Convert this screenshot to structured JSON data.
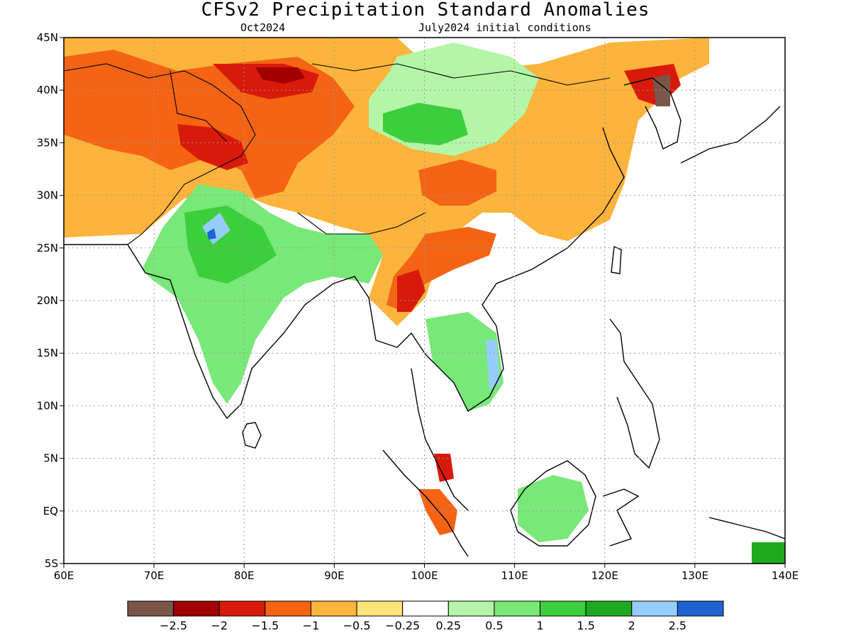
{
  "title": "CFSv2 Precipitation Standard Anomalies",
  "subtitle_left": "Oct2024",
  "subtitle_right": "July2024 initial conditions",
  "axes": {
    "lon_labels": [
      "60E",
      "70E",
      "80E",
      "90E",
      "100E",
      "110E",
      "120E",
      "130E",
      "140E"
    ],
    "lon_values": [
      60,
      70,
      80,
      90,
      100,
      110,
      120,
      130,
      140
    ],
    "lat_labels": [
      "45N",
      "40N",
      "35N",
      "30N",
      "25N",
      "20N",
      "15N",
      "10N",
      "5N",
      "EQ",
      "5S"
    ],
    "lat_values": [
      45,
      40,
      35,
      30,
      25,
      20,
      15,
      10,
      5,
      0,
      -5
    ]
  },
  "colorbar": {
    "colors": [
      "#7a5548",
      "#a00000",
      "#d81a0a",
      "#f46414",
      "#fcb43c",
      "#fde37a",
      "#ffffff",
      "#b4f5a8",
      "#78e878",
      "#3cce3c",
      "#1ea91e",
      "#96cdf8",
      "#1e64d2"
    ],
    "labels": [
      "−2.5",
      "−2",
      "−1.5",
      "−1",
      "−0.5",
      "−0.25",
      "0.25",
      "0.5",
      "1",
      "1.5",
      "2",
      "2.5"
    ]
  },
  "colors": {
    "coastline": "#000000",
    "grid": "#9a9a9a",
    "ocean": "#ffffff"
  }
}
